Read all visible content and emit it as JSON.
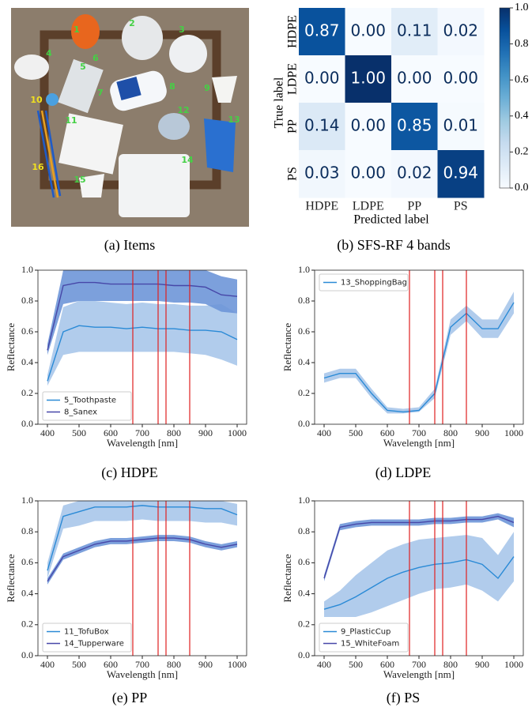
{
  "photo": {
    "caption": "(a) Items",
    "labels": [
      "1",
      "2",
      "3",
      "4",
      "5",
      "6",
      "7",
      "8",
      "9",
      "10",
      "11",
      "12",
      "13",
      "14",
      "15",
      "16"
    ]
  },
  "chart_data": [
    {
      "type": "heatmap",
      "caption": "(b) SFS-RF 4 bands",
      "x_label": "Predicted label",
      "y_label": "True label",
      "categories": [
        "HDPE",
        "LDPE",
        "PP",
        "PS"
      ],
      "matrix": [
        [
          0.87,
          0,
          0.11,
          0.02
        ],
        [
          0,
          1,
          0,
          0
        ],
        [
          0.14,
          0,
          0.85,
          0.01
        ],
        [
          0.03,
          0,
          0.02,
          0.94
        ]
      ],
      "value_labels": [
        [
          "0.87",
          "0.00",
          "0.11",
          "0.02"
        ],
        [
          "0.00",
          "1.00",
          "0.00",
          "0.00"
        ],
        [
          "0.14",
          "0.00",
          "0.85",
          "0.01"
        ],
        [
          "0.03",
          "0.00",
          "0.02",
          "0.94"
        ]
      ],
      "clim": [
        0,
        1
      ],
      "cticks": [
        {
          "value": 0,
          "label": "0.0"
        },
        0.2,
        0.4,
        0.6,
        0.8,
        {
          "value": 1,
          "label": "1.0"
        }
      ]
    },
    {
      "type": "line",
      "caption": "(c) HDPE",
      "x_label": "Wavelength [nm]",
      "y_label": "Reflectance",
      "x": [
        400,
        450,
        500,
        550,
        600,
        650,
        700,
        750,
        800,
        850,
        900,
        950,
        1000
      ],
      "xlim": [
        370,
        1030
      ],
      "xticks": [
        400,
        500,
        600,
        700,
        800,
        900,
        1000
      ],
      "ylim": [
        0,
        1
      ],
      "yticks": [
        {
          "value": 0,
          "label": "0.0"
        },
        0.2,
        0.4,
        0.6,
        0.8,
        {
          "value": 1,
          "label": "1.0"
        }
      ],
      "vlines": [
        670,
        750,
        775,
        850
      ],
      "vline_color": "#e02020",
      "legend": "lower left",
      "series": [
        {
          "name": "5_Toothpaste",
          "color": "#2a8ad6",
          "band_color": "#a8c6ea",
          "values": [
            0.28,
            0.6,
            0.64,
            0.63,
            0.63,
            0.62,
            0.63,
            0.62,
            0.62,
            0.61,
            0.61,
            0.6,
            0.55
          ],
          "lower": [
            0.25,
            0.45,
            0.47,
            0.47,
            0.47,
            0.47,
            0.47,
            0.47,
            0.47,
            0.46,
            0.45,
            0.42,
            0.38
          ],
          "upper": [
            0.32,
            0.76,
            0.8,
            0.8,
            0.79,
            0.78,
            0.79,
            0.78,
            0.78,
            0.77,
            0.77,
            0.78,
            0.72
          ]
        },
        {
          "name": "8_Sanex",
          "color": "#4747a8",
          "band_color": "#6e96d8",
          "values": [
            0.48,
            0.9,
            0.92,
            0.92,
            0.91,
            0.91,
            0.91,
            0.91,
            0.9,
            0.9,
            0.89,
            0.84,
            0.83
          ],
          "lower": [
            0.45,
            0.78,
            0.8,
            0.8,
            0.8,
            0.8,
            0.8,
            0.8,
            0.79,
            0.79,
            0.78,
            0.73,
            0.72
          ],
          "upper": [
            0.52,
            1,
            1,
            1,
            1,
            1,
            1,
            1,
            1,
            1,
            1,
            0.96,
            0.94
          ]
        }
      ]
    },
    {
      "type": "line",
      "caption": "(d) LDPE",
      "x_label": "Wavelength [nm]",
      "y_label": "Reflectance",
      "x": [
        400,
        450,
        500,
        550,
        600,
        650,
        700,
        750,
        800,
        850,
        900,
        950,
        1000
      ],
      "xlim": [
        370,
        1030
      ],
      "xticks": [
        400,
        500,
        600,
        700,
        800,
        900,
        1000
      ],
      "ylim": [
        0,
        1
      ],
      "yticks": [
        {
          "value": 0,
          "label": "0.0"
        },
        0.2,
        0.4,
        0.6,
        0.8,
        {
          "value": 1,
          "label": "1.0"
        }
      ],
      "vlines": [
        670,
        750,
        775,
        850
      ],
      "vline_color": "#e02020",
      "legend": "upper left",
      "series": [
        {
          "name": "13_ShoppingBag",
          "color": "#2a8ad6",
          "band_color": "#a8c6ea",
          "values": [
            0.3,
            0.33,
            0.33,
            0.2,
            0.09,
            0.08,
            0.09,
            0.2,
            0.63,
            0.72,
            0.62,
            0.62,
            0.79
          ],
          "lower": [
            0.27,
            0.3,
            0.3,
            0.17,
            0.07,
            0.07,
            0.08,
            0.17,
            0.58,
            0.67,
            0.56,
            0.56,
            0.72
          ],
          "upper": [
            0.33,
            0.36,
            0.36,
            0.23,
            0.11,
            0.1,
            0.11,
            0.23,
            0.68,
            0.77,
            0.68,
            0.68,
            0.86
          ]
        }
      ]
    },
    {
      "type": "line",
      "caption": "(e) PP",
      "x_label": "Wavelength [nm]",
      "y_label": "Reflectance",
      "x": [
        400,
        450,
        500,
        550,
        600,
        650,
        700,
        750,
        800,
        850,
        900,
        950,
        1000
      ],
      "xlim": [
        370,
        1030
      ],
      "xticks": [
        400,
        500,
        600,
        700,
        800,
        900,
        1000
      ],
      "ylim": [
        0,
        1
      ],
      "yticks": [
        {
          "value": 0,
          "label": "0.0"
        },
        0.2,
        0.4,
        0.6,
        0.8,
        {
          "value": 1,
          "label": "1.0"
        }
      ],
      "vlines": [
        670,
        750,
        775,
        850
      ],
      "vline_color": "#e02020",
      "legend": "lower left",
      "series": [
        {
          "name": "11_TofuBox",
          "color": "#2a8ad6",
          "band_color": "#a8c6ea",
          "values": [
            0.55,
            0.9,
            0.93,
            0.96,
            0.96,
            0.96,
            0.97,
            0.96,
            0.96,
            0.96,
            0.95,
            0.95,
            0.91
          ],
          "lower": [
            0.5,
            0.82,
            0.84,
            0.87,
            0.87,
            0.87,
            0.88,
            0.87,
            0.87,
            0.87,
            0.86,
            0.86,
            0.84
          ],
          "upper": [
            0.6,
            0.97,
            1,
            1,
            1,
            1,
            1,
            1,
            1,
            1,
            1,
            1,
            0.98
          ]
        },
        {
          "name": "14_Tupperware",
          "color": "#4747a8",
          "band_color": "#6e96d8",
          "values": [
            0.48,
            0.64,
            0.68,
            0.72,
            0.74,
            0.74,
            0.75,
            0.76,
            0.76,
            0.75,
            0.72,
            0.7,
            0.72
          ],
          "lower": [
            0.46,
            0.62,
            0.66,
            0.7,
            0.72,
            0.72,
            0.73,
            0.74,
            0.74,
            0.73,
            0.7,
            0.68,
            0.7
          ],
          "upper": [
            0.5,
            0.66,
            0.7,
            0.74,
            0.76,
            0.76,
            0.77,
            0.78,
            0.78,
            0.77,
            0.74,
            0.72,
            0.74
          ]
        }
      ]
    },
    {
      "type": "line",
      "caption": "(f) PS",
      "x_label": "Wavelength [nm]",
      "y_label": "Reflectance",
      "x": [
        400,
        450,
        500,
        550,
        600,
        650,
        700,
        750,
        800,
        850,
        900,
        950,
        1000
      ],
      "xlim": [
        370,
        1030
      ],
      "xticks": [
        400,
        500,
        600,
        700,
        800,
        900,
        1000
      ],
      "ylim": [
        0,
        1
      ],
      "yticks": [
        {
          "value": 0,
          "label": "0.0"
        },
        0.2,
        0.4,
        0.6,
        0.8,
        {
          "value": 1,
          "label": "1.0"
        }
      ],
      "vlines": [
        670,
        750,
        775,
        850
      ],
      "vline_color": "#e02020",
      "legend": "lower left",
      "series": [
        {
          "name": "9_PlasticCup",
          "color": "#2a8ad6",
          "band_color": "#a8c6ea",
          "values": [
            0.3,
            0.33,
            0.38,
            0.44,
            0.5,
            0.54,
            0.57,
            0.59,
            0.6,
            0.62,
            0.59,
            0.5,
            0.64
          ],
          "lower": [
            0.25,
            0.25,
            0.25,
            0.28,
            0.32,
            0.36,
            0.4,
            0.43,
            0.44,
            0.46,
            0.42,
            0.35,
            0.48
          ],
          "upper": [
            0.35,
            0.42,
            0.52,
            0.6,
            0.68,
            0.72,
            0.75,
            0.76,
            0.77,
            0.78,
            0.76,
            0.65,
            0.8
          ]
        },
        {
          "name": "15_WhiteFoam",
          "color": "#4747a8",
          "band_color": "#6e96d8",
          "values": [
            0.5,
            0.83,
            0.85,
            0.86,
            0.86,
            0.86,
            0.86,
            0.87,
            0.87,
            0.88,
            0.88,
            0.9,
            0.86
          ],
          "lower": [
            0.48,
            0.81,
            0.83,
            0.84,
            0.84,
            0.84,
            0.84,
            0.85,
            0.85,
            0.86,
            0.86,
            0.88,
            0.83
          ],
          "upper": [
            0.52,
            0.85,
            0.87,
            0.88,
            0.88,
            0.88,
            0.88,
            0.89,
            0.89,
            0.9,
            0.9,
            0.92,
            0.89
          ]
        }
      ]
    }
  ]
}
